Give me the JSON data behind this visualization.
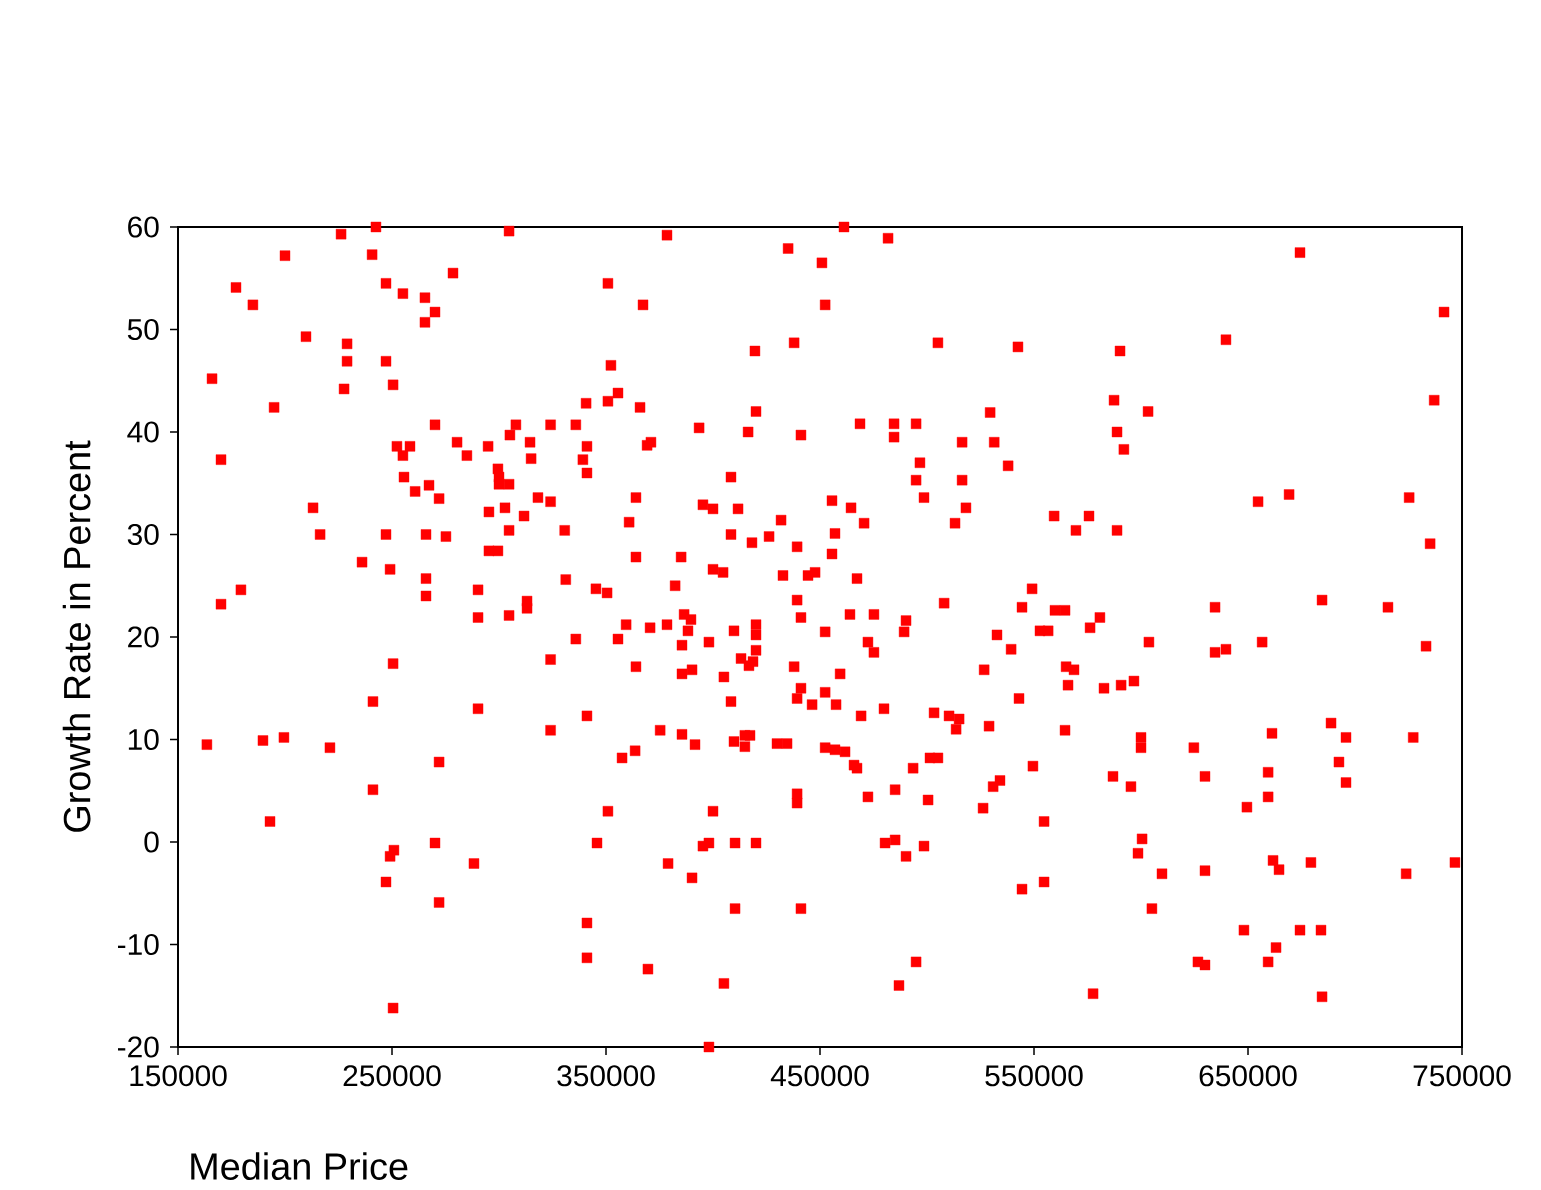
{
  "chart_data": {
    "type": "scatter",
    "xlabel": "Median Price",
    "ylabel": "Growth Rate in Percent",
    "color": "#ff0000",
    "marker": "square",
    "xlim": [
      150000,
      750000
    ],
    "ylim": [
      -20,
      60
    ],
    "xticks": [
      150000,
      250000,
      350000,
      450000,
      550000,
      650000,
      750000
    ],
    "yticks": [
      -20,
      -10,
      0,
      10,
      20,
      30,
      40,
      50,
      60
    ],
    "x": [
      163500,
      165900,
      170100,
      170100,
      177100,
      179400,
      185000,
      189700,
      193000,
      194900,
      199500,
      200000,
      209800,
      213100,
      216400,
      221000,
      226200,
      227600,
      229000,
      229000,
      236000,
      240700,
      241100,
      241100,
      242500,
      247200,
      247200,
      247200,
      247200,
      249100,
      249100,
      250500,
      250500,
      250500,
      250900,
      252300,
      255100,
      255100,
      255600,
      258400,
      260800,
      265400,
      265400,
      265900,
      265900,
      265900,
      267300,
      270100,
      270100,
      270100,
      272000,
      272000,
      272000,
      275200,
      278500,
      280400,
      285000,
      288300,
      290200,
      290200,
      290200,
      294900,
      295300,
      295300,
      299500,
      299500,
      300000,
      300000,
      302800,
      304700,
      304700,
      304700,
      304700,
      305100,
      307900,
      311700,
      313100,
      313100,
      314500,
      315000,
      318200,
      324100,
      324100,
      324100,
      324100,
      330700,
      331200,
      335900,
      335900,
      339200,
      340700,
      341100,
      341100,
      341100,
      341100,
      341100,
      345300,
      345800,
      350500,
      350900,
      350900,
      350900,
      352300,
      355600,
      355600,
      357500,
      359400,
      360800,
      363600,
      364000,
      364000,
      364000,
      365900,
      367300,
      369200,
      369600,
      371000,
      370600,
      375300,
      378500,
      378500,
      379000,
      382300,
      385100,
      385500,
      385500,
      385500,
      386500,
      388300,
      389700,
      390200,
      390200,
      391600,
      393500,
      395300,
      395300,
      398100,
      398100,
      398100,
      400000,
      400000,
      400000,
      404700,
      405100,
      405100,
      408400,
      408400,
      408400,
      409800,
      409800,
      410300,
      410300,
      411700,
      413100,
      414900,
      414900,
      416400,
      416800,
      417300,
      418200,
      418700,
      419600,
      420100,
      420100,
      420100,
      420100,
      420100,
      426200,
      429900,
      431800,
      432700,
      434600,
      435100,
      437900,
      437900,
      439300,
      439300,
      439300,
      439300,
      439300,
      441100,
      441100,
      441100,
      441100,
      444400,
      446300,
      447700,
      450900,
      452400,
      452400,
      452400,
      452400,
      455600,
      455600,
      457000,
      457000,
      457500,
      459400,
      461200,
      461700,
      464000,
      464500,
      465900,
      467300,
      467300,
      468700,
      469200,
      470600,
      472400,
      472400,
      475200,
      475200,
      479900,
      480400,
      481800,
      484600,
      484600,
      485100,
      485100,
      486900,
      489300,
      490200,
      490200,
      493500,
      494900,
      494900,
      494900,
      496700,
      498600,
      498600,
      500500,
      501400,
      503300,
      505100,
      505100,
      508000,
      510300,
      513100,
      513600,
      515000,
      516400,
      516400,
      518200,
      526200,
      526700,
      529000,
      529500,
      530900,
      531400,
      532700,
      534100,
      537900,
      539300,
      542500,
      543000,
      544400,
      544400,
      549100,
      549500,
      552800,
      554700,
      554700,
      556600,
      559400,
      559800,
      564500,
      564500,
      565000,
      565900,
      568700,
      569600,
      575700,
      576200,
      577600,
      580800,
      582700,
      586900,
      587400,
      588800,
      588800,
      590200,
      590700,
      592000,
      595300,
      596700,
      598600,
      600000,
      600000,
      600500,
      603300,
      603700,
      605100,
      609800,
      624700,
      626600,
      629900,
      629900,
      629900,
      634600,
      634600,
      639700,
      639700,
      648100,
      649500,
      654700,
      656600,
      659400,
      659400,
      659400,
      661200,
      661700,
      663100,
      664500,
      669200,
      674300,
      674300,
      679400,
      684100,
      684600,
      684600,
      688800,
      692500,
      695800,
      695800,
      715400,
      723900,
      725300,
      727200,
      733200,
      735100,
      737000,
      741600,
      746700
    ],
    "values": [
      9.5,
      45.2,
      37.3,
      23.2,
      54.1,
      24.6,
      52.4,
      9.9,
      2.0,
      42.4,
      10.2,
      57.2,
      49.3,
      32.6,
      30.0,
      9.2,
      59.3,
      44.2,
      48.6,
      46.9,
      27.3,
      57.3,
      13.7,
      5.1,
      60,
      54.5,
      46.9,
      30.0,
      -3.9,
      26.6,
      -1.4,
      44.6,
      17.4,
      -16.2,
      -0.8,
      38.6,
      53.5,
      37.7,
      35.6,
      38.6,
      34.2,
      53.1,
      50.7,
      30.0,
      25.7,
      24.0,
      34.8,
      51.7,
      40.7,
      -0.1,
      33.5,
      7.8,
      -5.9,
      29.8,
      55.5,
      39.0,
      37.7,
      -2.1,
      24.6,
      21.9,
      13.0,
      38.6,
      32.2,
      28.4,
      28.4,
      36.4,
      34.9,
      35.6,
      32.6,
      34.9,
      22.1,
      30.4,
      59.6,
      39.7,
      40.7,
      31.8,
      23.5,
      22.8,
      39.0,
      37.4,
      33.6,
      33.2,
      40.7,
      17.8,
      10.9,
      30.4,
      25.6,
      40.7,
      19.8,
      37.3,
      42.8,
      38.6,
      36.0,
      12.3,
      -7.9,
      -11.3,
      24.7,
      -0.1,
      24.3,
      43.0,
      3.0,
      54.5,
      46.5,
      43.8,
      19.8,
      8.2,
      21.2,
      31.2,
      8.9,
      33.6,
      27.8,
      17.1,
      42.4,
      52.4,
      38.7,
      -12.4,
      39.0,
      20.9,
      10.9,
      59.2,
      21.2,
      -2.1,
      25.0,
      27.8,
      19.2,
      16.4,
      10.5,
      22.2,
      20.6,
      21.7,
      16.8,
      -3.5,
      9.5,
      40.4,
      32.9,
      -0.4,
      19.5,
      -0.1,
      -20,
      26.6,
      32.5,
      3.0,
      26.3,
      16.1,
      -13.8,
      35.6,
      30.0,
      13.7,
      20.6,
      9.8,
      -0.1,
      -6.5,
      32.5,
      17.9,
      10.4,
      9.3,
      40.0,
      17.2,
      10.4,
      29.2,
      17.6,
      47.9,
      42.0,
      21.2,
      20.2,
      18.7,
      -0.1,
      29.8,
      9.6,
      31.4,
      26.0,
      9.6,
      57.9,
      48.7,
      17.1,
      28.8,
      23.6,
      14.0,
      4.7,
      3.8,
      39.7,
      15.0,
      21.9,
      -6.5,
      26.0,
      13.4,
      26.3,
      56.5,
      52.4,
      20.5,
      14.6,
      9.2,
      33.3,
      28.1,
      30.1,
      9.0,
      13.4,
      16.4,
      60,
      8.8,
      22.2,
      32.6,
      7.5,
      7.2,
      25.7,
      40.8,
      12.3,
      31.1,
      4.4,
      19.5,
      22.2,
      18.5,
      13.0,
      -0.1,
      58.9,
      40.8,
      39.5,
      5.1,
      0.2,
      -14.0,
      20.5,
      21.6,
      -1.4,
      7.2,
      35.3,
      40.8,
      -11.7,
      37.0,
      33.6,
      -0.4,
      4.1,
      8.2,
      12.6,
      48.7,
      8.2,
      23.3,
      12.3,
      31.1,
      11.0,
      12.0,
      39.0,
      35.3,
      32.6,
      3.3,
      16.8,
      11.3,
      41.9,
      5.4,
      39.0,
      20.2,
      6.0,
      36.7,
      18.8,
      48.3,
      14.0,
      -4.6,
      22.9,
      24.7,
      7.4,
      20.6,
      2.0,
      -3.9,
      20.6,
      31.8,
      22.6,
      22.6,
      10.9,
      17.1,
      15.3,
      16.8,
      30.4,
      31.8,
      20.9,
      -14.8,
      21.9,
      15.0,
      6.4,
      43.1,
      40.0,
      30.4,
      47.9,
      15.3,
      38.3,
      5.4,
      15.7,
      -1.1,
      10.2,
      9.2,
      0.3,
      42.0,
      19.5,
      -6.5,
      -3.1,
      9.2,
      -11.7,
      -12.0,
      6.4,
      -2.8,
      22.9,
      18.5,
      18.8,
      49.0,
      -8.6,
      3.4,
      33.2,
      19.5,
      6.8,
      4.4,
      -11.7,
      10.6,
      -1.8,
      -10.3,
      -2.7,
      33.9,
      57.5,
      -8.6,
      -2.0,
      -8.6,
      23.6,
      -15.1,
      11.6,
      7.8,
      10.2,
      5.8,
      22.9,
      -3.1,
      33.6,
      10.2,
      19.1,
      29.1,
      43.1,
      51.7,
      -2.0
    ]
  }
}
